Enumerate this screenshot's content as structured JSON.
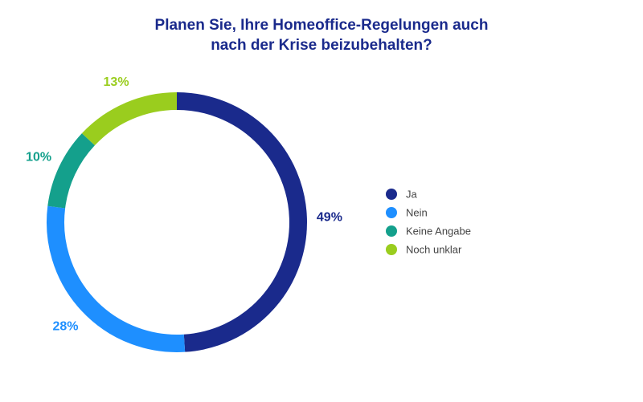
{
  "chart_data": {
    "type": "pie",
    "donut": true,
    "title": [
      "Planen Sie, Ihre Homeoffice-Regelungen auch",
      "nach der Krise beizubehalten?"
    ],
    "categories": [
      "Ja",
      "Nein",
      "Keine Angabe",
      "Noch unklar"
    ],
    "values": [
      49,
      28,
      10,
      13
    ],
    "value_labels": [
      "49%",
      "28%",
      "10%",
      "13%"
    ],
    "colors": [
      "#1a2a8c",
      "#1e8fff",
      "#14a08c",
      "#9acd1e"
    ]
  }
}
